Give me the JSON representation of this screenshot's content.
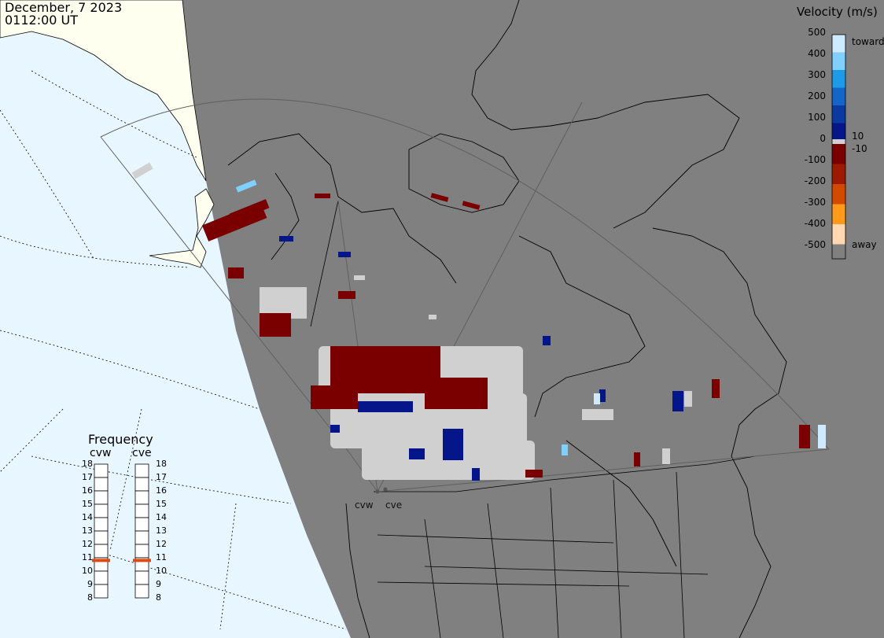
{
  "header": {
    "date": "December, 7 2023",
    "time": "0112:00 UT"
  },
  "colorbar": {
    "title": "Velocity (m/s)",
    "ticks": [
      "500",
      "400",
      "300",
      "200",
      "100",
      "0",
      "-100",
      "-200",
      "-300",
      "-400",
      "-500"
    ],
    "toward_label": "toward",
    "away_label": "away",
    "pos_limit_label": "10",
    "neg_limit_label": "-10",
    "colors": [
      "#cfeaff",
      "#7fcfff",
      "#1e9be8",
      "#1565c8",
      "#0b3a9e",
      "#05158a",
      "#7a0000",
      "#9c1a00",
      "#d14a00",
      "#ff9a1a",
      "#ffd7b0"
    ]
  },
  "frequency": {
    "title": "Frequency",
    "radars": [
      {
        "name": "cvw",
        "value_mhz": 10.8
      },
      {
        "name": "cve",
        "value_mhz": 10.8
      }
    ],
    "scale": [
      "18",
      "17",
      "16",
      "15",
      "14",
      "13",
      "12",
      "11",
      "10",
      "9",
      "8"
    ],
    "indicator_color": "#e04a10"
  },
  "radar_sites": [
    {
      "name": "cvw"
    },
    {
      "name": "cve"
    }
  ],
  "map_colors": {
    "ocean_day": "#e8f6ff",
    "land_day": "#fffff0",
    "night": "#808080",
    "ground_scatter": "#d0d0d0"
  }
}
